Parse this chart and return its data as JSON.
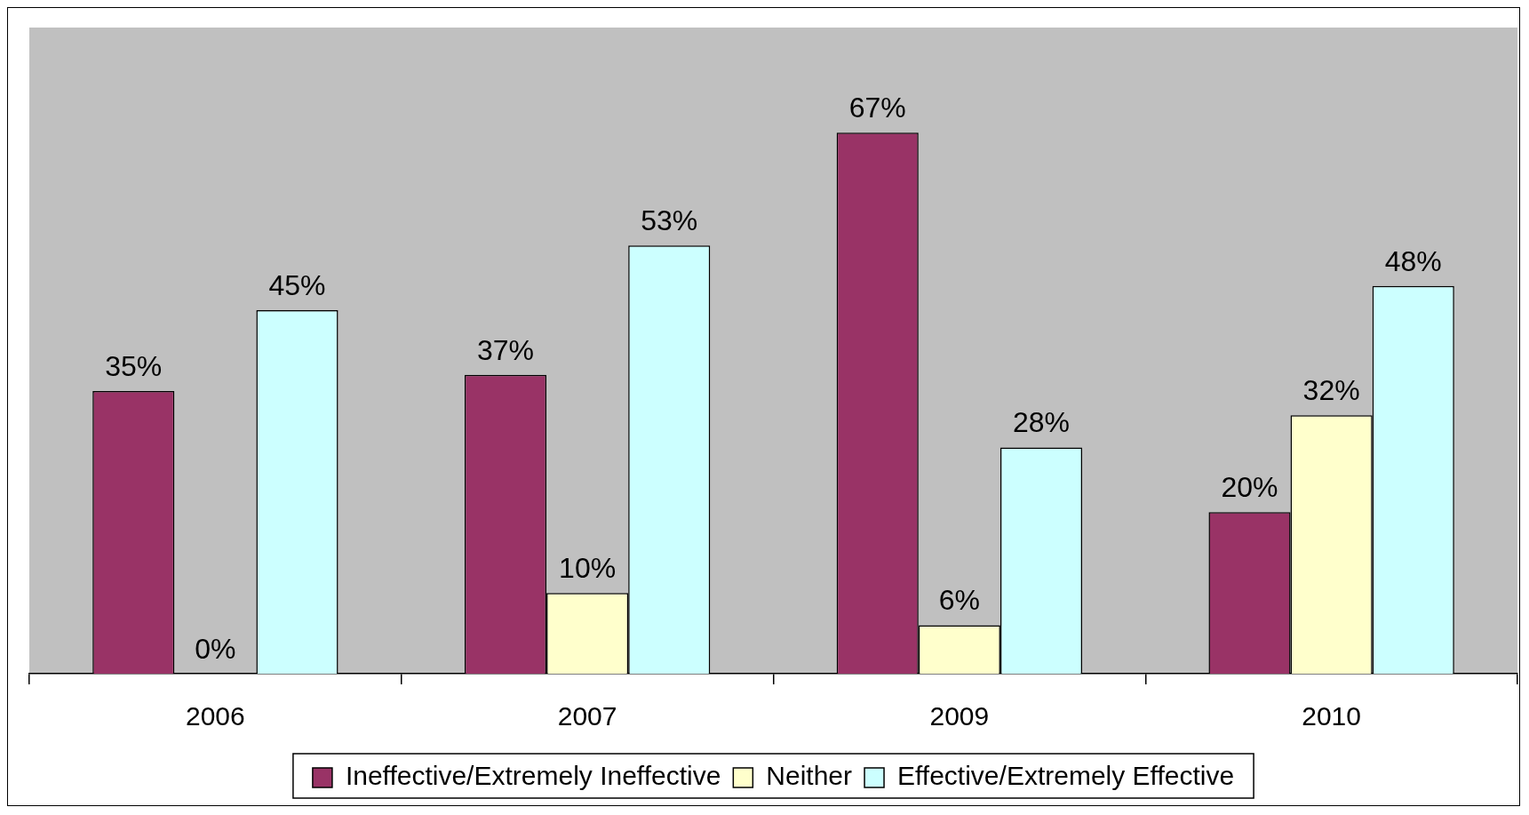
{
  "chart_data": {
    "type": "bar",
    "categories": [
      "2006",
      "2007",
      "2009",
      "2010"
    ],
    "series": [
      {
        "name": "Ineffective/Extremely Ineffective",
        "color": "#993366",
        "values": [
          35,
          37,
          67,
          20
        ],
        "value_labels": [
          "35%",
          "37%",
          "67%",
          "20%"
        ]
      },
      {
        "name": "Neither",
        "color": "#ffffcc",
        "values": [
          0,
          10,
          6,
          32
        ],
        "value_labels": [
          "0%",
          "10%",
          "6%",
          "32%"
        ]
      },
      {
        "name": "Effective/Extremely Effective",
        "color": "#ccffff",
        "values": [
          45,
          53,
          28,
          48
        ],
        "value_labels": [
          "45%",
          "53%",
          "28%",
          "48%"
        ]
      }
    ],
    "legend": "bottom",
    "grid": false
  }
}
